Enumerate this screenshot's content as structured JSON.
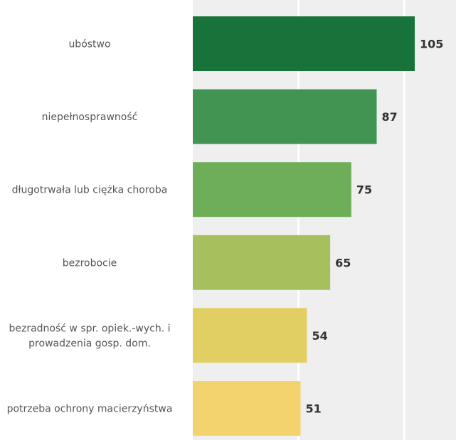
{
  "chart_data": {
    "type": "bar",
    "orientation": "horizontal",
    "categories": [
      [
        "ubóstwo"
      ],
      [
        "niepełnosprawność"
      ],
      [
        "długotrwała lub ciężka choroba"
      ],
      [
        "bezrobocie"
      ],
      [
        "bezradność w spr. opiek.-wych. i",
        "prowadzenia gosp. dom."
      ],
      [
        "potrzeba ochrony macierzyństwa"
      ]
    ],
    "values": [
      105,
      87,
      75,
      65,
      54,
      51
    ],
    "colors": [
      "#177339",
      "#429452",
      "#6fae58",
      "#a7c05e",
      "#e2cf63",
      "#f3d36d"
    ],
    "xlim": [
      0,
      125
    ],
    "grid_ticks": [
      50,
      100
    ],
    "grid": true,
    "plot_background": "#efefef",
    "legend": "none"
  }
}
